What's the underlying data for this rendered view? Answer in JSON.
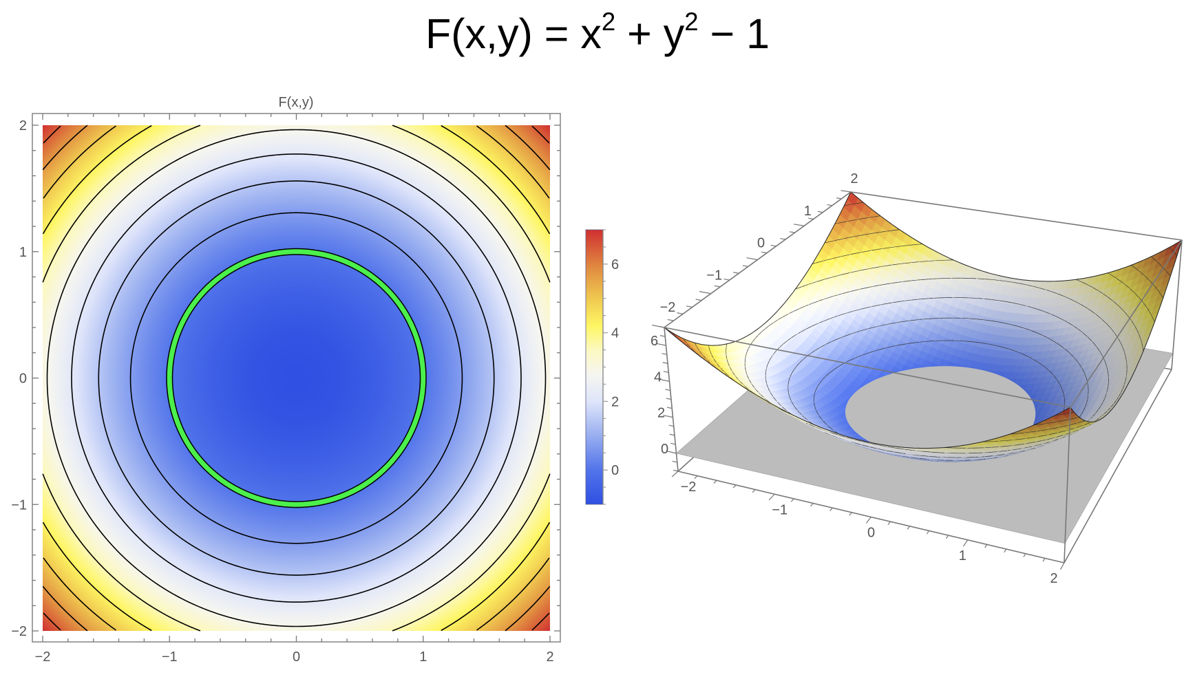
{
  "title": {
    "lhs": "F(x,y) = x",
    "sup1": "2",
    "mid": " + y",
    "sup2": "2",
    "rhs": " − 1"
  },
  "chart_data": [
    {
      "type": "heatmap",
      "subtype": "contour-density",
      "title": "F(x,y)",
      "function": "x^2 + y^2 - 1",
      "xlim": [
        -2,
        2
      ],
      "ylim": [
        -2,
        2
      ],
      "xticks": [
        {
          "value": -2,
          "label": "−2"
        },
        {
          "value": -1,
          "label": "−1"
        },
        {
          "value": 0,
          "label": "0"
        },
        {
          "value": 1,
          "label": "1"
        },
        {
          "value": 2,
          "label": "2"
        }
      ],
      "yticks": [
        {
          "value": -2,
          "label": "−2"
        },
        {
          "value": -1,
          "label": "−1"
        },
        {
          "value": 0,
          "label": "0"
        },
        {
          "value": 1,
          "label": "1"
        },
        {
          "value": 2,
          "label": "2"
        }
      ],
      "contour_levels": [
        0.71,
        1.43,
        2.14,
        2.86,
        3.57,
        4.29,
        5.0,
        5.71,
        6.43
      ],
      "contour_color": "#000000",
      "highlighted_contour": {
        "level": 0,
        "color": "#4cf04c"
      },
      "grid": false,
      "colorbar": {
        "range": [
          -1,
          7
        ],
        "ticks": [
          {
            "value": 0,
            "label": "0"
          },
          {
            "value": 2,
            "label": "2"
          },
          {
            "value": 4,
            "label": "4"
          },
          {
            "value": 6,
            "label": "6"
          }
        ],
        "placement": "right",
        "gradient": [
          {
            "value": -1,
            "color": "#2f50e2"
          },
          {
            "value": 0,
            "color": "#5274ea"
          },
          {
            "value": 1,
            "color": "#98aef0"
          },
          {
            "value": 2,
            "color": "#dfe5fa"
          },
          {
            "value": 2.8,
            "color": "#f6f6f0"
          },
          {
            "value": 3.5,
            "color": "#fcf8c0"
          },
          {
            "value": 4.2,
            "color": "#fef664"
          },
          {
            "value": 5.0,
            "color": "#f0c850"
          },
          {
            "value": 5.8,
            "color": "#e29242"
          },
          {
            "value": 7,
            "color": "#d03030"
          }
        ]
      }
    },
    {
      "type": "surface",
      "function": "x^2 + y^2 - 1",
      "xlim": [
        -2,
        2
      ],
      "ylim": [
        -2,
        2
      ],
      "zlim": [
        -1,
        7
      ],
      "xticks": [
        {
          "value": -2,
          "label": "−2"
        },
        {
          "value": -1,
          "label": "−1"
        },
        {
          "value": 0,
          "label": "0"
        },
        {
          "value": 1,
          "label": "1"
        },
        {
          "value": 2,
          "label": "2"
        }
      ],
      "yticks": [
        {
          "value": -2,
          "label": "−2"
        },
        {
          "value": -1,
          "label": "−1"
        },
        {
          "value": 0,
          "label": "0"
        },
        {
          "value": 1,
          "label": "1"
        },
        {
          "value": 2,
          "label": "2"
        }
      ],
      "zticks": [
        {
          "value": 0,
          "label": "0"
        },
        {
          "value": 2,
          "label": "2"
        },
        {
          "value": 4,
          "label": "4"
        },
        {
          "value": 6,
          "label": "6"
        }
      ],
      "plane": {
        "z": 0,
        "color": "#bcbcbc"
      },
      "mesh_levels": [
        0.71,
        1.43,
        2.14,
        2.86,
        3.57,
        4.29,
        5.0,
        5.71,
        6.43
      ],
      "box_color": "#777777"
    }
  ]
}
